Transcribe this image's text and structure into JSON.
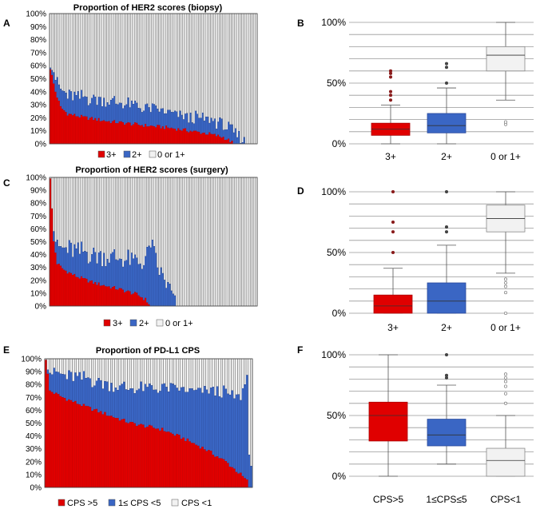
{
  "colors": {
    "red": "#e00000",
    "dark_red": "#c00000",
    "blue": "#3a66c4",
    "dark_blue": "#2a4a9c",
    "light": "#f2f2f2",
    "grid": "#999999"
  },
  "chart_data": [
    {
      "panel": "A",
      "type": "bar",
      "stacked": true,
      "title": "Proportion of HER2 scores (biopsy)",
      "yticks": [
        "0%",
        "10%",
        "20%",
        "30%",
        "40%",
        "50%",
        "60%",
        "70%",
        "80%",
        "90%",
        "100%"
      ],
      "ylim": [
        0,
        100
      ],
      "legend": [
        "3+",
        "2+",
        "0 or 1+"
      ],
      "n_bars": 120,
      "non_zero_bars": 113,
      "series": [
        {
          "name": "3+",
          "anchors": [
            [
              0,
              58
            ],
            [
              3,
              40
            ],
            [
              6,
              28
            ],
            [
              10,
              23
            ],
            [
              20,
              20
            ],
            [
              35,
              17
            ],
            [
              55,
              14
            ],
            [
              70,
              12
            ],
            [
              80,
              10
            ],
            [
              90,
              8
            ],
            [
              100,
              5
            ],
            [
              104,
              2
            ],
            [
              106,
              0
            ]
          ]
        },
        {
          "name": "2+",
          "anchors": [
            [
              0,
              6
            ],
            [
              2,
              10
            ],
            [
              8,
              14
            ],
            [
              20,
              15
            ],
            [
              30,
              16
            ],
            [
              50,
              14
            ],
            [
              60,
              13
            ],
            [
              70,
              11
            ],
            [
              80,
              10
            ],
            [
              90,
              11
            ],
            [
              100,
              10
            ],
            [
              106,
              8
            ],
            [
              110,
              5
            ],
            [
              113,
              0
            ]
          ]
        }
      ]
    },
    {
      "panel": "B",
      "type": "box",
      "yticks": [
        "0%",
        "50%",
        "100%"
      ],
      "ylim": [
        0,
        100
      ],
      "categories": [
        "3+",
        "2+",
        "0 or 1+"
      ],
      "boxes": [
        {
          "min": 0,
          "q1": 7,
          "median": 12,
          "q3": 17,
          "max": 32,
          "outliers": [
            36,
            40,
            43,
            55,
            58,
            60
          ]
        },
        {
          "min": 0,
          "q1": 9,
          "median": 15,
          "q3": 25,
          "max": 46,
          "outliers": [
            50,
            63,
            66
          ]
        },
        {
          "min": 36,
          "q1": 60,
          "median": 73,
          "q3": 80,
          "max": 100,
          "outliers": [
            16,
            18
          ]
        }
      ]
    },
    {
      "panel": "C",
      "type": "bar",
      "stacked": true,
      "title": "Proportion of HER2 scores (surgery)",
      "yticks": [
        "0%",
        "10%",
        "20%",
        "30%",
        "40%",
        "50%",
        "60%",
        "70%",
        "80%",
        "90%",
        "100%"
      ],
      "ylim": [
        0,
        100
      ],
      "legend": [
        "3+",
        "2+",
        "0 or 1+"
      ],
      "n_bars": 120,
      "non_zero_bars": 73,
      "series": [
        {
          "name": "3+",
          "anchors": [
            [
              0,
              100
            ],
            [
              1,
              75
            ],
            [
              2,
              50
            ],
            [
              4,
              33
            ],
            [
              8,
              28
            ],
            [
              15,
              23
            ],
            [
              25,
              18
            ],
            [
              40,
              13
            ],
            [
              50,
              9
            ],
            [
              55,
              5
            ],
            [
              58,
              0
            ]
          ]
        },
        {
          "name": "2+",
          "anchors": [
            [
              0,
              0
            ],
            [
              2,
              10
            ],
            [
              10,
              18
            ],
            [
              25,
              22
            ],
            [
              40,
              24
            ],
            [
              50,
              25
            ],
            [
              55,
              30
            ],
            [
              58,
              50
            ],
            [
              62,
              30
            ],
            [
              66,
              20
            ],
            [
              70,
              10
            ],
            [
              73,
              0
            ]
          ]
        }
      ]
    },
    {
      "panel": "D",
      "type": "box",
      "yticks": [
        "0%",
        "50%",
        "100%"
      ],
      "ylim": [
        0,
        100
      ],
      "categories": [
        "3+",
        "2+",
        "0 or 1+"
      ],
      "boxes": [
        {
          "min": 0,
          "q1": 0,
          "median": 6,
          "q3": 15,
          "max": 37,
          "outliers": [
            50,
            67,
            75,
            100
          ]
        },
        {
          "min": 0,
          "q1": 0,
          "median": 10,
          "q3": 25,
          "max": 56,
          "outliers": [
            67,
            71,
            100
          ]
        },
        {
          "min": 33,
          "q1": 67,
          "median": 78,
          "q3": 89,
          "max": 100,
          "outliers": [
            0,
            17,
            22,
            25,
            28
          ]
        }
      ]
    },
    {
      "panel": "E",
      "type": "bar",
      "stacked": true,
      "title": "Proportion of PD-L1 CPS",
      "yticks": [
        "0%",
        "10%",
        "20%",
        "30%",
        "40%",
        "50%",
        "60%",
        "70%",
        "80%",
        "90%",
        "100%"
      ],
      "ylim": [
        0,
        100
      ],
      "legend": [
        "CPS >5",
        "1≤ CPS <5",
        "CPS <1"
      ],
      "n_bars": 98,
      "non_zero_bars": 98,
      "series": [
        {
          "name": "CPS >5",
          "anchors": [
            [
              0,
              100
            ],
            [
              2,
              75
            ],
            [
              8,
              70
            ],
            [
              20,
              62
            ],
            [
              30,
              56
            ],
            [
              40,
              50
            ],
            [
              55,
              45
            ],
            [
              65,
              38
            ],
            [
              75,
              30
            ],
            [
              85,
              20
            ],
            [
              92,
              10
            ],
            [
              95,
              5
            ],
            [
              96,
              0
            ]
          ]
        },
        {
          "name": "1≤ CPS <5",
          "anchors": [
            [
              0,
              0
            ],
            [
              2,
              15
            ],
            [
              10,
              18
            ],
            [
              20,
              22
            ],
            [
              35,
              25
            ],
            [
              50,
              30
            ],
            [
              60,
              35
            ],
            [
              70,
              40
            ],
            [
              80,
              50
            ],
            [
              88,
              55
            ],
            [
              92,
              60
            ],
            [
              95,
              80
            ],
            [
              96,
              30
            ],
            [
              97,
              17
            ]
          ]
        }
      ]
    },
    {
      "panel": "F",
      "type": "box",
      "yticks": [
        "0%",
        "50%",
        "100%"
      ],
      "ylim": [
        0,
        100
      ],
      "categories": [
        "CPS>5",
        "1≤CPS≤5",
        "CPS<1"
      ],
      "boxes": [
        {
          "min": 0,
          "q1": 29,
          "median": 50,
          "q3": 61,
          "max": 100,
          "outliers": []
        },
        {
          "min": 10,
          "q1": 25,
          "median": 34,
          "q3": 47,
          "max": 75,
          "outliers": [
            81,
            83,
            100
          ]
        },
        {
          "min": 0,
          "q1": 0,
          "median": 13,
          "q3": 23,
          "max": 50,
          "outliers": [
            60,
            68,
            74,
            78,
            81,
            84
          ]
        }
      ]
    }
  ]
}
